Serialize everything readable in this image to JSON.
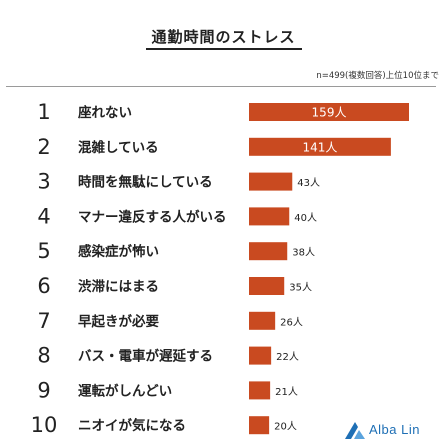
{
  "chart_data": {
    "type": "bar",
    "title": "通勤時間のストレス",
    "note": "n=499(複数回答)上位10位まで",
    "ranks": [
      "1",
      "2",
      "3",
      "4",
      "5",
      "6",
      "7",
      "8",
      "9",
      "10"
    ],
    "categories": [
      "座れない",
      "混雑している",
      "時間を無駄にしている",
      "マナー違反する人がいる",
      "感染症が怖い",
      "渋滞にはまる",
      "早起きが必要",
      "バス・電車が遅延する",
      "運転がしんどい",
      "ニオイが気になる"
    ],
    "values": [
      159,
      141,
      43,
      40,
      38,
      35,
      26,
      22,
      21,
      20
    ],
    "value_labels": [
      "159人",
      "141人",
      "43人",
      "40人",
      "38人",
      "35人",
      "26人",
      "22人",
      "21人",
      "20人"
    ],
    "bar_color": "#c94a20",
    "inside_label_color": "#ffffff",
    "outside_label_color": "#222222"
  },
  "brand": {
    "name": "Alba Lin",
    "logo_color": "#1e6fb5"
  }
}
